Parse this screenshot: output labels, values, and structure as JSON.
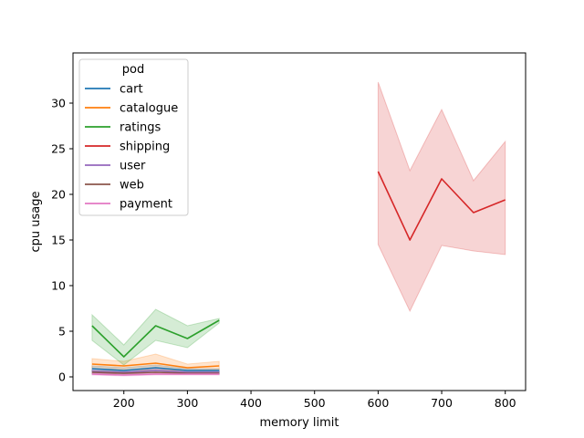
{
  "chart_data": {
    "type": "line",
    "title": "",
    "xlabel": "memory limit",
    "ylabel": "cpu usage",
    "xlim": [
      120,
      832
    ],
    "ylim": [
      -1.5,
      35.5
    ],
    "xticks": [
      200,
      300,
      400,
      500,
      600,
      700,
      800
    ],
    "yticks": [
      0,
      5,
      10,
      15,
      20,
      25,
      30
    ],
    "grid": false,
    "legend": {
      "title": "pod",
      "position": "top-left"
    },
    "series": [
      {
        "name": "cart",
        "color": "#1f77b4",
        "x": [
          150,
          200,
          250,
          300,
          350
        ],
        "y": [
          0.9,
          0.7,
          1.0,
          0.7,
          0.7
        ],
        "lower": [
          0.6,
          0.5,
          0.7,
          0.5,
          0.5
        ],
        "upper": [
          1.2,
          1.0,
          1.3,
          0.9,
          0.9
        ]
      },
      {
        "name": "catalogue",
        "color": "#ff7f0e",
        "x": [
          150,
          200,
          250,
          300,
          350
        ],
        "y": [
          1.4,
          1.2,
          1.5,
          1.0,
          1.2
        ],
        "lower": [
          0.9,
          0.8,
          0.7,
          0.7,
          0.8
        ],
        "upper": [
          2.0,
          1.7,
          2.5,
          1.4,
          1.7
        ]
      },
      {
        "name": "ratings",
        "color": "#2ca02c",
        "x": [
          150,
          200,
          250,
          300,
          350
        ],
        "y": [
          5.6,
          2.2,
          5.6,
          4.2,
          6.2
        ],
        "lower": [
          4.0,
          1.3,
          4.0,
          3.2,
          5.9
        ],
        "upper": [
          6.8,
          3.5,
          7.4,
          5.6,
          6.4
        ]
      },
      {
        "name": "shipping",
        "color": "#d62728",
        "x": [
          600,
          650,
          700,
          750,
          800
        ],
        "y": [
          22.5,
          15.0,
          21.7,
          18.0,
          19.4
        ],
        "lower": [
          14.5,
          7.2,
          14.4,
          13.8,
          13.4
        ],
        "upper": [
          32.3,
          22.6,
          29.3,
          21.5,
          25.8
        ]
      },
      {
        "name": "user",
        "color": "#9467bd",
        "x": [
          150,
          200,
          250,
          300,
          350
        ],
        "y": [
          0.6,
          0.5,
          0.7,
          0.5,
          0.5
        ],
        "lower": [
          0.4,
          0.3,
          0.5,
          0.3,
          0.3
        ],
        "upper": [
          0.8,
          0.7,
          0.9,
          0.7,
          0.7
        ]
      },
      {
        "name": "web",
        "color": "#8c564b",
        "x": [
          150,
          200,
          250,
          300,
          350
        ],
        "y": [
          0.5,
          0.4,
          0.5,
          0.4,
          0.4
        ],
        "lower": [
          0.3,
          0.3,
          0.3,
          0.3,
          0.3
        ],
        "upper": [
          0.7,
          0.6,
          0.7,
          0.6,
          0.6
        ]
      },
      {
        "name": "payment",
        "color": "#e377c2",
        "x": [
          150,
          200,
          250,
          300,
          350
        ],
        "y": [
          0.3,
          0.2,
          0.3,
          0.3,
          0.3
        ],
        "lower": [
          0.2,
          0.1,
          0.2,
          0.2,
          0.2
        ],
        "upper": [
          0.4,
          0.3,
          0.4,
          0.4,
          0.4
        ]
      }
    ]
  }
}
